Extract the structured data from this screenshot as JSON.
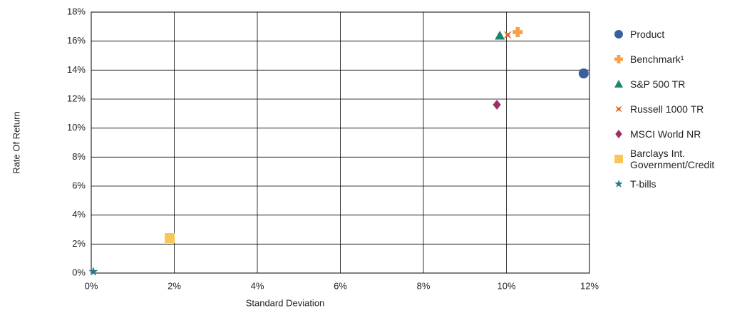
{
  "chart_data": {
    "type": "scatter",
    "x_label": "Standard Deviation",
    "y_label": "Rate Of Return",
    "xlim": [
      0,
      12
    ],
    "ylim": [
      0,
      18
    ],
    "grid": true,
    "xticks": [
      {
        "value": 0,
        "label": "0%"
      },
      {
        "value": 2,
        "label": "2%"
      },
      {
        "value": 4,
        "label": "4%"
      },
      {
        "value": 6,
        "label": "6%"
      },
      {
        "value": 8,
        "label": "8%"
      },
      {
        "value": 10,
        "label": "10%"
      },
      {
        "value": 12,
        "label": "12%"
      }
    ],
    "yticks": [
      {
        "value": 0,
        "label": "0%"
      },
      {
        "value": 2,
        "label": "2%"
      },
      {
        "value": 4,
        "label": "4%"
      },
      {
        "value": 6,
        "label": "6%"
      },
      {
        "value": 8,
        "label": "8%"
      },
      {
        "value": 10,
        "label": "10%"
      },
      {
        "value": 12,
        "label": "12%"
      },
      {
        "value": 14,
        "label": "14%"
      },
      {
        "value": 16,
        "label": "16%"
      },
      {
        "value": 18,
        "label": "18%"
      }
    ],
    "series": [
      {
        "name": "Product",
        "color": "#3a5f9a",
        "marker": "circle",
        "x": [
          11.86
        ],
        "values": [
          13.77
        ]
      },
      {
        "name": "Benchmark¹",
        "color": "#f5a04a",
        "marker": "plus",
        "x": [
          10.27
        ],
        "values": [
          16.62
        ]
      },
      {
        "name": "S&P 500 TR",
        "color": "#15876a",
        "marker": "triangle",
        "x": [
          9.84
        ],
        "values": [
          16.38
        ]
      },
      {
        "name": "Russell 1000 TR",
        "color": "#e0622a",
        "marker": "xstar",
        "x": [
          10.03
        ],
        "values": [
          16.43
        ]
      },
      {
        "name": "MSCI World NR",
        "color": "#9e2f64",
        "marker": "diamond",
        "x": [
          9.77
        ],
        "values": [
          11.61
        ]
      },
      {
        "name": "Barclays Int. Government/Credit",
        "color": "#f8c75a",
        "marker": "square",
        "x": [
          1.89
        ],
        "values": [
          2.41
        ]
      },
      {
        "name": "T-bills",
        "color": "#2a7a8a",
        "marker": "star",
        "x": [
          0.05
        ],
        "values": [
          0.1
        ]
      }
    ]
  }
}
